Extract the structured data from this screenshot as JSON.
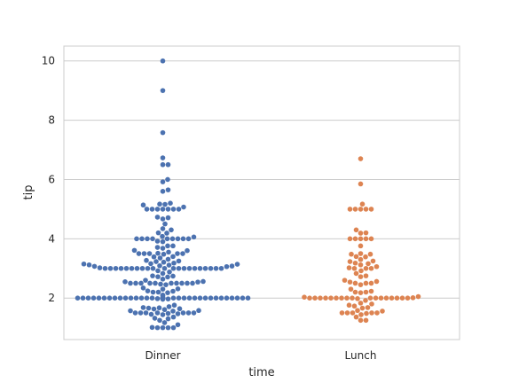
{
  "chart_data": {
    "type": "scatter",
    "subtype": "swarm",
    "xlabel": "time",
    "ylabel": "tip",
    "categories": [
      "Dinner",
      "Lunch"
    ],
    "colors": {
      "Dinner": "#4c72b0",
      "Lunch": "#dd8452"
    },
    "ylim": [
      0.6,
      10.5
    ],
    "yticks": [
      2,
      4,
      6,
      8,
      10
    ],
    "grid": "horizontal",
    "series": [
      {
        "category": "Dinner",
        "values": [
          10.0,
          9.0,
          7.58,
          6.73,
          6.5,
          6.5,
          6.0,
          5.92,
          5.65,
          5.6,
          5.2,
          5.17,
          5.16,
          5.14,
          5.07,
          5.0,
          5.0,
          5.0,
          5.0,
          5.0,
          5.0,
          5.0,
          4.73,
          4.71,
          4.67,
          4.5,
          4.34,
          4.3,
          4.2,
          4.19,
          4.08,
          4.06,
          4.0,
          4.0,
          4.0,
          4.0,
          4.0,
          4.0,
          4.0,
          4.0,
          4.0,
          3.92,
          3.9,
          3.76,
          3.76,
          3.71,
          3.68,
          3.61,
          3.6,
          3.55,
          3.51,
          3.5,
          3.5,
          3.5,
          3.5,
          3.5,
          3.48,
          3.4,
          3.39,
          3.35,
          3.31,
          3.27,
          3.25,
          3.23,
          3.21,
          3.18,
          3.16,
          3.15,
          3.14,
          3.12,
          3.11,
          3.09,
          3.08,
          3.07,
          3.06,
          3.02,
          3.0,
          3.0,
          3.0,
          3.0,
          3.0,
          3.0,
          3.0,
          3.0,
          3.0,
          3.0,
          3.0,
          3.0,
          3.0,
          3.0,
          3.0,
          3.0,
          3.0,
          3.0,
          3.0,
          3.0,
          3.0,
          2.92,
          2.88,
          2.83,
          2.75,
          2.74,
          2.72,
          2.71,
          2.64,
          2.6,
          2.56,
          2.55,
          2.54,
          2.5,
          2.5,
          2.5,
          2.5,
          2.5,
          2.5,
          2.5,
          2.5,
          2.5,
          2.5,
          2.47,
          2.45,
          2.34,
          2.31,
          2.3,
          2.24,
          2.23,
          2.2,
          2.2,
          2.18,
          2.1,
          2.09,
          2.03,
          2.01,
          2.0,
          2.0,
          2.0,
          2.0,
          2.0,
          2.0,
          2.0,
          2.0,
          2.0,
          2.0,
          2.0,
          2.0,
          2.0,
          2.0,
          2.0,
          2.0,
          2.0,
          2.0,
          2.0,
          2.0,
          2.0,
          2.0,
          2.0,
          2.0,
          2.0,
          2.0,
          2.0,
          2.0,
          2.0,
          2.0,
          2.0,
          2.0,
          2.0,
          1.98,
          1.97,
          1.96,
          1.76,
          1.71,
          1.68,
          1.67,
          1.66,
          1.64,
          1.63,
          1.61,
          1.58,
          1.57,
          1.56,
          1.5,
          1.5,
          1.5,
          1.5,
          1.5,
          1.5,
          1.5,
          1.48,
          1.47,
          1.45,
          1.44,
          1.36,
          1.32,
          1.3,
          1.25,
          1.17,
          1.1,
          1.01,
          1.0,
          1.0,
          1.0,
          1.0
        ]
      },
      {
        "category": "Lunch",
        "values": [
          6.7,
          5.85,
          5.17,
          5.0,
          5.0,
          5.0,
          5.0,
          5.0,
          4.3,
          4.2,
          4.19,
          4.0,
          4.0,
          4.0,
          4.0,
          4.0,
          3.76,
          3.5,
          3.48,
          3.48,
          3.4,
          3.39,
          3.3,
          3.25,
          3.23,
          3.18,
          3.16,
          3.12,
          3.06,
          3.02,
          3.0,
          3.0,
          3.0,
          2.92,
          2.83,
          2.75,
          2.72,
          2.6,
          2.56,
          2.54,
          2.5,
          2.5,
          2.5,
          2.45,
          2.3,
          2.23,
          2.2,
          2.2,
          2.18,
          2.05,
          2.03,
          2.01,
          2.0,
          2.0,
          2.0,
          2.0,
          2.0,
          2.0,
          2.0,
          2.0,
          2.0,
          2.0,
          2.0,
          2.0,
          2.0,
          2.0,
          2.0,
          2.0,
          2.0,
          1.98,
          1.92,
          1.83,
          1.8,
          1.76,
          1.73,
          1.68,
          1.66,
          1.58,
          1.56,
          1.5,
          1.5,
          1.5,
          1.5,
          1.5,
          1.48,
          1.44,
          1.36,
          1.25,
          1.25
        ]
      }
    ]
  }
}
